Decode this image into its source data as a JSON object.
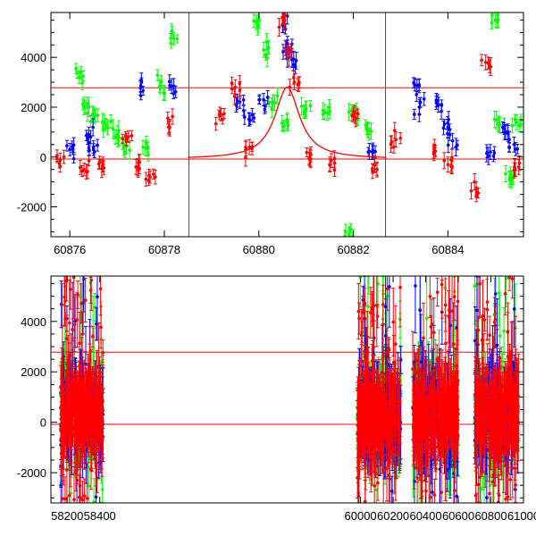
{
  "chart_data": [
    {
      "type": "scatter",
      "title": "",
      "xlabel": "",
      "ylabel": "",
      "xlim": [
        60875.6,
        60885.6
      ],
      "ylim": [
        -3200,
        5800
      ],
      "grid": false,
      "x_ticks": [
        "60876",
        "60878",
        "60880",
        "60882",
        "60884"
      ],
      "x_tick_values": [
        60876,
        60878,
        60880,
        60882,
        60884
      ],
      "y_ticks": [
        "-2000",
        "0",
        "2000",
        "4000"
      ],
      "y_tick_values": [
        -2000,
        0,
        2000,
        4000
      ],
      "hlines": [
        {
          "y": 2780,
          "color": "#ff0000"
        },
        {
          "y": -80,
          "color": "#ff0000"
        }
      ],
      "vlines": [
        {
          "x": 60878.52,
          "color": "#ff0000"
        },
        {
          "x": 60882.68,
          "color": "#ff0000"
        }
      ],
      "model_curve": {
        "color": "#ff0000",
        "center": 60880.6,
        "peak": 2800,
        "baseline": -80,
        "width": 0.32,
        "x_range": [
          60878.5,
          60882.7
        ]
      },
      "series": [
        {
          "name": "green",
          "color": "#00ff00",
          "points": [
            [
              60876.2,
              3200,
              250
            ],
            [
              60876.3,
              2050,
              350
            ],
            [
              60876.5,
              1700,
              300
            ],
            [
              60876.8,
              1200,
              300
            ],
            [
              60877.0,
              900,
              350
            ],
            [
              60877.2,
              450,
              300
            ],
            [
              60877.6,
              350,
              300
            ],
            [
              60877.9,
              2850,
              250
            ],
            [
              60878.2,
              4750,
              250
            ],
            [
              60879.95,
              5400,
              300
            ],
            [
              60880.1,
              4300,
              300
            ],
            [
              60880.3,
              2200,
              300
            ],
            [
              60880.6,
              1400,
              300
            ],
            [
              60881.0,
              1950,
              300
            ],
            [
              60881.4,
              1800,
              300
            ],
            [
              60881.9,
              -3100,
              300
            ],
            [
              60882.0,
              1800,
              300
            ],
            [
              60882.3,
              1100,
              300
            ],
            [
              60885.0,
              5500,
              300
            ],
            [
              60885.1,
              1300,
              300
            ],
            [
              60885.3,
              -900,
              300
            ],
            [
              60885.45,
              1400,
              300
            ]
          ]
        },
        {
          "name": "blue",
          "color": "#0000ff",
          "points": [
            [
              60876.0,
              300,
              250
            ],
            [
              60876.4,
              900,
              300
            ],
            [
              60876.5,
              400,
              250
            ],
            [
              60877.5,
              2850,
              250
            ],
            [
              60878.2,
              2850,
              300
            ],
            [
              60879.6,
              2200,
              250
            ],
            [
              60879.8,
              1500,
              250
            ],
            [
              60880.1,
              2300,
              250
            ],
            [
              60880.5,
              5300,
              300
            ],
            [
              60880.6,
              4400,
              300
            ],
            [
              60880.7,
              3900,
              300
            ],
            [
              60882.4,
              200,
              300
            ],
            [
              60883.3,
              2900,
              250
            ],
            [
              60883.4,
              2000,
              300
            ],
            [
              60883.8,
              2100,
              300
            ],
            [
              60884.0,
              1200,
              300
            ],
            [
              60884.1,
              650,
              300
            ],
            [
              60884.9,
              200,
              300
            ],
            [
              60885.2,
              1000,
              300
            ],
            [
              60885.4,
              500,
              300
            ]
          ]
        },
        {
          "name": "red",
          "color": "#ff0000",
          "points": [
            [
              60875.8,
              -100,
              250
            ],
            [
              60876.3,
              -500,
              250
            ],
            [
              60876.7,
              -300,
              300
            ],
            [
              60877.2,
              700,
              250
            ],
            [
              60877.4,
              -400,
              300
            ],
            [
              60877.7,
              -800,
              250
            ],
            [
              60878.1,
              1200,
              300
            ],
            [
              60879.2,
              1700,
              250
            ],
            [
              60879.5,
              2800,
              300
            ],
            [
              60879.8,
              400,
              300
            ],
            [
              60880.5,
              5600,
              300
            ],
            [
              60880.6,
              4200,
              300
            ],
            [
              60880.75,
              3000,
              300
            ],
            [
              60881.1,
              100,
              300
            ],
            [
              60881.5,
              -300,
              300
            ],
            [
              60882.0,
              1700,
              300
            ],
            [
              60882.5,
              -500,
              300
            ],
            [
              60882.9,
              700,
              300
            ],
            [
              60883.7,
              200,
              250
            ],
            [
              60884.0,
              -300,
              300
            ],
            [
              60884.6,
              -1300,
              300
            ],
            [
              60884.8,
              3800,
              300
            ],
            [
              60885.5,
              -400,
              300
            ]
          ]
        }
      ]
    },
    {
      "type": "scatter",
      "title": "",
      "xlabel": "",
      "ylabel": "",
      "xlim": [
        58100,
        61000
      ],
      "ylim": [
        -3200,
        5800
      ],
      "grid": false,
      "x_ticks": [
        "58200",
        "58400",
        "60000",
        "60200",
        "60400",
        "60600",
        "60800",
        "61000"
      ],
      "x_tick_values": [
        58200,
        58400,
        60000,
        60200,
        60400,
        60600,
        60800,
        61000
      ],
      "y_ticks": [
        "-2000",
        "0",
        "2000",
        "4000"
      ],
      "y_tick_values": [
        -2000,
        0,
        2000,
        4000
      ],
      "hlines": [
        {
          "y": 2780,
          "color": "#ff0000"
        },
        {
          "y": -80,
          "color": "#ff0000"
        }
      ],
      "series": [
        {
          "name": "green",
          "color": "#00ff00"
        },
        {
          "name": "blue",
          "color": "#0000ff"
        },
        {
          "name": "red",
          "color": "#ff0000"
        }
      ],
      "segments": [
        {
          "start": 58160,
          "end": 58420
        },
        {
          "start": 59980,
          "end": 60250
        },
        {
          "start": 60320,
          "end": 60600
        },
        {
          "start": 60700,
          "end": 60970
        }
      ],
      "cloud": {
        "core_center": 300,
        "core_half_height": 1500,
        "outlier_low": -3200,
        "outlier_high": 5800
      }
    }
  ]
}
